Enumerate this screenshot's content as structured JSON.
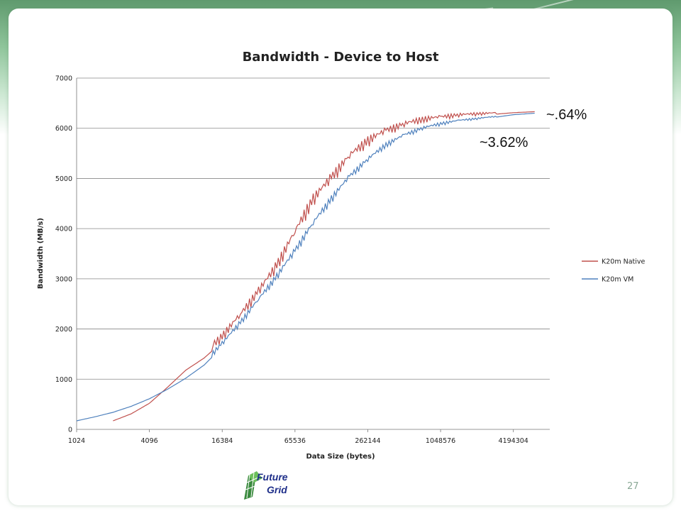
{
  "slide": {
    "page_number": "27"
  },
  "logo": {
    "line1": "Future",
    "line2": "Grid"
  },
  "colors": {
    "native": "#c0504d",
    "vm": "#4f81bd",
    "grid": "#888888",
    "accent": "#7fbf8a"
  },
  "chart_data": {
    "type": "line",
    "title": "Bandwidth - Device to Host",
    "xlabel": "Data Size (bytes)",
    "ylabel": "Bandwidth (MB/s)",
    "x_scale": "log2",
    "xlim": [
      1024,
      8388608
    ],
    "ylim": [
      0,
      7000
    ],
    "x_ticks": [
      "1024",
      "4096",
      "16384",
      "65536",
      "262144",
      "1048576",
      "4194304"
    ],
    "y_ticks": [
      "0",
      "1000",
      "2000",
      "3000",
      "4000",
      "5000",
      "6000",
      "7000"
    ],
    "grid": "horizontal",
    "legend": "right",
    "series": [
      {
        "name": "K20m Native",
        "color": "#c0504d",
        "x": [
          2048,
          2896,
          4096,
          5792,
          8192,
          11585,
          16384,
          23170,
          32768,
          46341,
          65536,
          92682,
          131072,
          185364,
          262144,
          370727,
          524288,
          741455,
          1048576,
          1482910,
          2097152,
          2965821,
          4194304,
          6291456
        ],
        "y": [
          170,
          310,
          520,
          840,
          1180,
          1420,
          1740,
          2150,
          2600,
          3100,
          3750,
          4400,
          4850,
          5300,
          5620,
          5830,
          5980,
          6090,
          6150,
          6210,
          6250,
          6280,
          6310,
          6330
        ]
      },
      {
        "name": "K20m VM",
        "color": "#4f81bd",
        "x": [
          1024,
          1448,
          2048,
          2896,
          4096,
          5792,
          8192,
          11585,
          16384,
          23170,
          32768,
          46341,
          65536,
          92682,
          131072,
          185364,
          262144,
          370727,
          524288,
          741455,
          1048576,
          1482910,
          2097152,
          2965821,
          4194304,
          6291456
        ],
        "y": [
          170,
          250,
          340,
          460,
          610,
          800,
          1020,
          1280,
          1640,
          2050,
          2500,
          2950,
          3450,
          4000,
          4500,
          4950,
          5300,
          5600,
          5800,
          5950,
          6050,
          6120,
          6170,
          6220,
          6270,
          6300
        ]
      }
    ],
    "annotations": [
      "~.64%",
      "~3.62%"
    ]
  }
}
